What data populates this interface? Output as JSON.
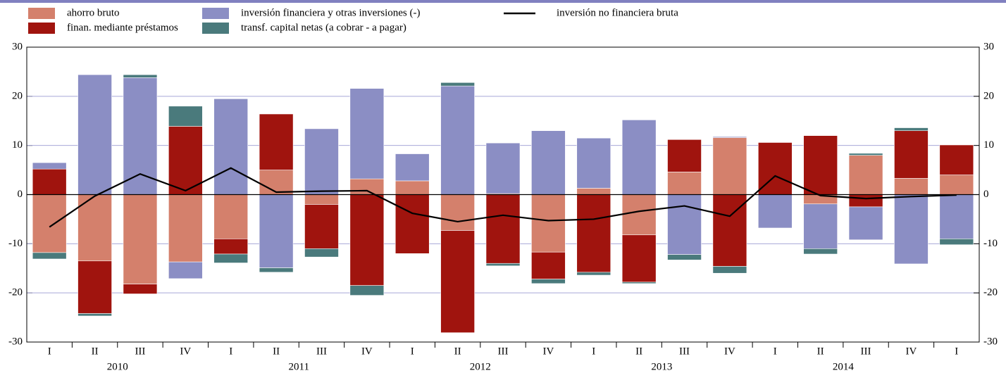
{
  "chart_data": {
    "type": "bar",
    "categories": [
      "I",
      "II",
      "III",
      "IV",
      "I",
      "II",
      "III",
      "IV",
      "I",
      "II",
      "III",
      "IV",
      "I",
      "II",
      "III",
      "IV",
      "I",
      "II",
      "III",
      "IV",
      "I"
    ],
    "years": [
      "2010",
      "2011",
      "2012",
      "2013",
      "2014"
    ],
    "series": [
      {
        "name": "ahorro bruto",
        "color": "#d4806c",
        "values": [
          -11.8,
          -13.5,
          -18.2,
          -13.7,
          -9,
          5,
          -2,
          3.2,
          2.8,
          -7.3,
          0.2,
          -11.7,
          1.3,
          -8.2,
          4.6,
          11.6,
          0,
          -1.9,
          8,
          3.3,
          4
        ]
      },
      {
        "name": "finan. mediante préstamos",
        "color": "#a0140e",
        "values": [
          5.2,
          -10.7,
          -2,
          13.9,
          -3.1,
          11.4,
          -9,
          -18.5,
          -12,
          -20.8,
          -14,
          -5.5,
          -15.8,
          -9.6,
          6.6,
          -14.6,
          10.6,
          12,
          -2.5,
          9.7,
          6.1
        ]
      },
      {
        "name": "inversión financiera y otras inversiones (-)",
        "color": "#8b8ec4",
        "values": [
          1.3,
          24.4,
          23.8,
          -3.4,
          19.5,
          -14.9,
          13.4,
          18.4,
          5.5,
          22.1,
          10.3,
          13,
          10.2,
          15.2,
          -12.2,
          0.2,
          -6.8,
          -9.1,
          -6.7,
          -14.1,
          -9
        ]
      },
      {
        "name": "transf. capital netas (a cobrar - a pagar)",
        "color": "#4a7a7c",
        "values": [
          -1.3,
          -0.5,
          0.6,
          4.1,
          -1.8,
          -0.9,
          -1.7,
          -2,
          0,
          0.7,
          -0.5,
          -0.9,
          -0.6,
          -0.3,
          -1.1,
          -1.4,
          0,
          -1.1,
          0.4,
          0.6,
          -1.2
        ]
      }
    ],
    "line": {
      "name": "inversión no financiera bruta",
      "color": "#000000",
      "values": [
        -6.6,
        -0.3,
        4.2,
        0.8,
        5.4,
        0.5,
        0.7,
        0.8,
        -3.8,
        -5.5,
        -4.2,
        -5.3,
        -5,
        -3.4,
        -2.3,
        -4.4,
        3.8,
        -0.2,
        -0.8,
        -0.4,
        -0.1
      ]
    },
    "ylim": [
      -30,
      30
    ],
    "yticks": [
      -30,
      -20,
      -10,
      0,
      10,
      20,
      30
    ],
    "y2lim": [
      -30,
      30
    ],
    "y2ticks": [
      -30,
      -20,
      -10,
      0,
      10,
      20,
      30
    ],
    "grid": true
  }
}
